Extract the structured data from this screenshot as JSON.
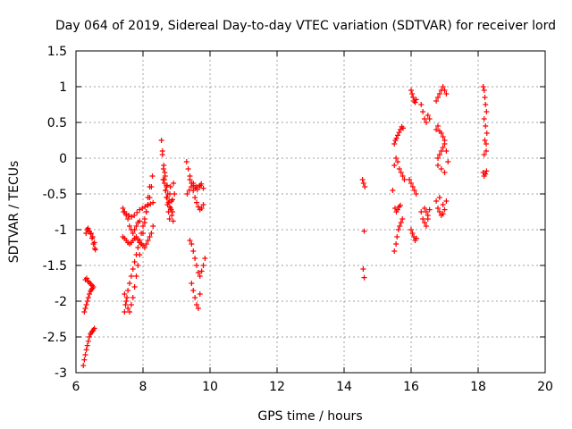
{
  "chart_data": {
    "type": "scatter",
    "title": "Day 064 of 2019, Sidereal Day-to-day VTEC variation (SDTVAR) for receiver lord",
    "xlabel": "GPS time / hours",
    "ylabel": "SDTVAR / TECUs",
    "xlim": [
      6,
      20
    ],
    "ylim": [
      -3,
      1.5
    ],
    "xticks": [
      "6",
      "8",
      "10",
      "12",
      "14",
      "16",
      "18",
      "20"
    ],
    "yticks": [
      "1.5",
      "1",
      "0.5",
      "0",
      "-0.5",
      "-1",
      "-1.5",
      "-2",
      "-2.5",
      "-3"
    ],
    "grid": true,
    "marker": "plus",
    "color": "#ff0000",
    "series": [
      {
        "x": [
          6.22,
          6.25,
          6.28,
          6.31,
          6.34,
          6.37,
          6.4,
          6.43,
          6.46,
          6.49,
          6.52,
          6.55,
          6.25,
          6.28,
          6.31,
          6.34,
          6.37,
          6.4,
          6.43,
          6.46,
          6.49,
          6.28,
          6.32,
          6.36,
          6.4,
          6.44,
          6.48,
          6.52,
          6.35,
          6.4,
          6.45,
          6.5,
          6.55,
          6.3,
          6.33,
          6.36,
          6.4,
          6.44,
          6.48,
          6.52,
          6.56,
          6.58,
          7.45,
          7.48,
          7.52,
          7.55,
          7.6,
          7.65,
          7.7,
          7.75,
          7.8,
          7.85,
          7.9,
          7.95,
          8.0,
          8.05,
          8.1,
          8.15,
          8.2,
          8.25,
          8.28,
          7.42,
          7.5,
          7.58,
          7.66,
          7.74,
          7.82,
          7.9,
          7.98,
          8.06,
          8.14,
          8.22,
          8.3,
          7.4,
          7.45,
          7.5,
          7.55,
          7.6,
          7.65,
          7.7,
          7.75,
          7.8,
          7.85,
          7.9,
          7.95,
          8.0,
          8.05,
          8.1,
          8.15,
          8.2,
          8.25,
          8.3,
          7.45,
          7.5,
          7.55,
          7.6,
          7.65,
          7.7,
          7.75,
          7.8,
          7.85,
          7.9,
          7.95,
          8.0,
          8.05,
          8.1,
          8.15,
          8.2,
          7.4,
          7.45,
          7.5,
          7.55,
          7.6,
          7.65,
          7.7,
          7.75,
          7.8,
          7.85,
          7.9,
          8.55,
          8.58,
          8.61,
          8.64,
          8.67,
          8.7,
          8.73,
          8.76,
          8.79,
          8.82,
          8.85,
          8.88,
          8.91,
          8.94,
          8.58,
          8.62,
          8.66,
          8.7,
          8.74,
          8.78,
          8.82,
          8.86,
          8.9,
          8.6,
          8.64,
          8.68,
          8.72,
          8.76,
          8.8,
          8.84,
          8.88,
          8.65,
          8.72,
          8.8,
          9.3,
          9.35,
          9.4,
          9.45,
          9.5,
          9.55,
          9.6,
          9.65,
          9.7,
          9.75,
          9.8,
          9.32,
          9.38,
          9.44,
          9.5,
          9.56,
          9.62,
          9.68,
          9.74,
          9.4,
          9.45,
          9.5,
          9.55,
          9.6,
          9.65,
          9.7,
          9.75,
          9.8,
          9.85,
          9.45,
          9.5,
          9.55,
          9.6,
          9.65,
          9.7,
          9.4,
          9.5,
          9.6,
          9.7,
          9.8,
          14.55,
          14.58,
          14.6,
          14.62,
          14.57,
          14.6,
          15.5,
          15.55,
          15.58,
          15.62,
          15.66,
          15.7,
          15.74,
          15.5,
          15.53,
          15.56,
          15.6,
          15.64,
          15.68,
          15.72,
          15.76,
          15.52,
          15.56,
          15.6,
          15.64,
          15.68,
          15.45,
          15.5,
          15.55,
          15.6,
          15.65,
          15.7,
          15.75,
          15.8,
          16.0,
          16.03,
          16.06,
          16.09,
          16.12,
          16.15,
          16.0,
          16.04,
          16.08,
          16.12,
          16.16,
          15.95,
          16.0,
          16.05,
          16.1,
          16.15,
          16.3,
          16.35,
          16.4,
          16.45,
          16.5,
          16.55,
          16.3,
          16.35,
          16.4,
          16.45,
          16.5,
          16.4,
          16.45,
          16.5,
          16.55,
          16.75,
          16.8,
          16.85,
          16.9,
          16.95,
          17.0,
          17.05,
          16.75,
          16.8,
          16.85,
          16.9,
          16.95,
          17.0,
          16.8,
          16.85,
          16.9,
          16.95,
          17.0,
          17.05,
          17.1,
          16.75,
          16.8,
          16.85,
          16.9,
          16.95,
          17.0,
          16.8,
          16.9,
          17.0,
          17.05,
          16.85,
          16.95,
          18.15,
          18.18,
          18.2,
          18.22,
          18.25,
          18.18,
          18.22,
          18.26,
          18.2,
          18.24,
          18.15,
          18.18,
          18.22,
          18.25,
          18.18,
          18.24
        ],
        "y": [
          -2.9,
          -2.82,
          -2.75,
          -2.68,
          -2.62,
          -2.56,
          -2.5,
          -2.46,
          -2.44,
          -2.42,
          -2.4,
          -2.38,
          -2.15,
          -2.1,
          -2.05,
          -2.0,
          -1.95,
          -1.9,
          -1.86,
          -1.84,
          -1.82,
          -1.7,
          -1.68,
          -1.72,
          -1.74,
          -1.76,
          -1.78,
          -1.8,
          -1.0,
          -1.02,
          -1.05,
          -1.1,
          -1.18,
          -1.05,
          -1.0,
          -0.98,
          -1.02,
          -1.06,
          -1.12,
          -1.2,
          -1.26,
          -1.28,
          -2.15,
          -2.05,
          -1.95,
          -1.85,
          -1.75,
          -1.65,
          -1.55,
          -1.45,
          -1.35,
          -1.25,
          -1.15,
          -1.05,
          -0.95,
          -0.85,
          -0.75,
          -0.65,
          -0.55,
          -0.4,
          -0.25,
          -0.75,
          -0.78,
          -0.8,
          -0.82,
          -0.8,
          -0.76,
          -0.72,
          -0.7,
          -0.68,
          -0.66,
          -0.64,
          -0.62,
          -1.1,
          -1.12,
          -1.15,
          -1.18,
          -1.2,
          -1.18,
          -1.15,
          -1.12,
          -1.1,
          -1.14,
          -1.18,
          -1.2,
          -1.22,
          -1.25,
          -1.2,
          -1.15,
          -1.1,
          -1.05,
          -0.95,
          -1.9,
          -2.0,
          -2.1,
          -2.15,
          -2.05,
          -1.95,
          -1.8,
          -1.65,
          -1.5,
          -1.35,
          -1.2,
          -1.05,
          -0.9,
          -0.75,
          -0.55,
          -0.4,
          -0.7,
          -0.75,
          -0.8,
          -0.85,
          -0.95,
          -1.0,
          -1.05,
          -1.0,
          -0.95,
          -0.9,
          -0.88,
          0.25,
          0.05,
          -0.15,
          -0.3,
          -0.45,
          -0.55,
          -0.65,
          -0.75,
          -0.85,
          -0.4,
          -0.6,
          -0.75,
          -0.35,
          -0.5,
          0.1,
          -0.1,
          -0.25,
          -0.4,
          -0.5,
          -0.6,
          -0.7,
          -0.8,
          -0.88,
          -0.3,
          -0.35,
          -0.45,
          -0.55,
          -0.62,
          -0.68,
          -0.72,
          -0.58,
          -0.2,
          -0.38,
          -0.5,
          -0.05,
          -0.15,
          -0.25,
          -0.35,
          -0.45,
          -0.55,
          -0.62,
          -0.68,
          -0.72,
          -0.7,
          -0.65,
          -0.5,
          -0.45,
          -0.4,
          -0.38,
          -0.42,
          -0.44,
          -0.4,
          -0.36,
          -1.15,
          -1.2,
          -1.3,
          -1.4,
          -1.5,
          -1.6,
          -1.65,
          -1.58,
          -1.5,
          -1.4,
          -1.75,
          -1.85,
          -1.95,
          -2.05,
          -2.1,
          -1.9,
          -0.3,
          -0.35,
          -0.4,
          -0.38,
          -0.42,
          -0.3,
          -0.35,
          -1.02,
          -0.4,
          -1.55,
          -1.67,
          -1.3,
          -1.2,
          -1.1,
          -1.0,
          -0.95,
          -0.9,
          -0.85,
          0.2,
          0.25,
          0.28,
          0.32,
          0.36,
          0.4,
          0.44,
          0.42,
          -0.7,
          -0.75,
          -0.72,
          -0.68,
          -0.66,
          -0.45,
          -0.1,
          0.0,
          -0.05,
          -0.15,
          -0.2,
          -0.25,
          -0.3,
          0.95,
          0.9,
          0.85,
          0.8,
          0.78,
          0.82,
          -1.0,
          -1.05,
          -1.1,
          -1.15,
          -1.12,
          -0.3,
          -0.35,
          -0.4,
          -0.45,
          -0.5,
          0.75,
          0.65,
          0.55,
          0.5,
          0.6,
          0.55,
          -0.75,
          -0.85,
          -0.9,
          -0.95,
          -0.85,
          -0.7,
          -0.75,
          -0.8,
          -0.72,
          0.8,
          0.85,
          0.9,
          0.95,
          1.0,
          0.95,
          0.9,
          -0.6,
          -0.7,
          -0.75,
          -0.8,
          -0.78,
          -0.72,
          0.0,
          0.05,
          0.1,
          0.15,
          0.2,
          0.1,
          -0.05,
          0.4,
          0.45,
          0.38,
          0.35,
          0.3,
          0.25,
          -0.1,
          -0.15,
          -0.2,
          -0.6,
          -0.55,
          -0.65,
          1.0,
          0.95,
          0.85,
          0.75,
          0.65,
          0.55,
          0.45,
          0.35,
          0.25,
          0.2,
          -0.2,
          -0.25,
          -0.22,
          -0.18,
          0.05,
          0.1
        ]
      }
    ]
  }
}
